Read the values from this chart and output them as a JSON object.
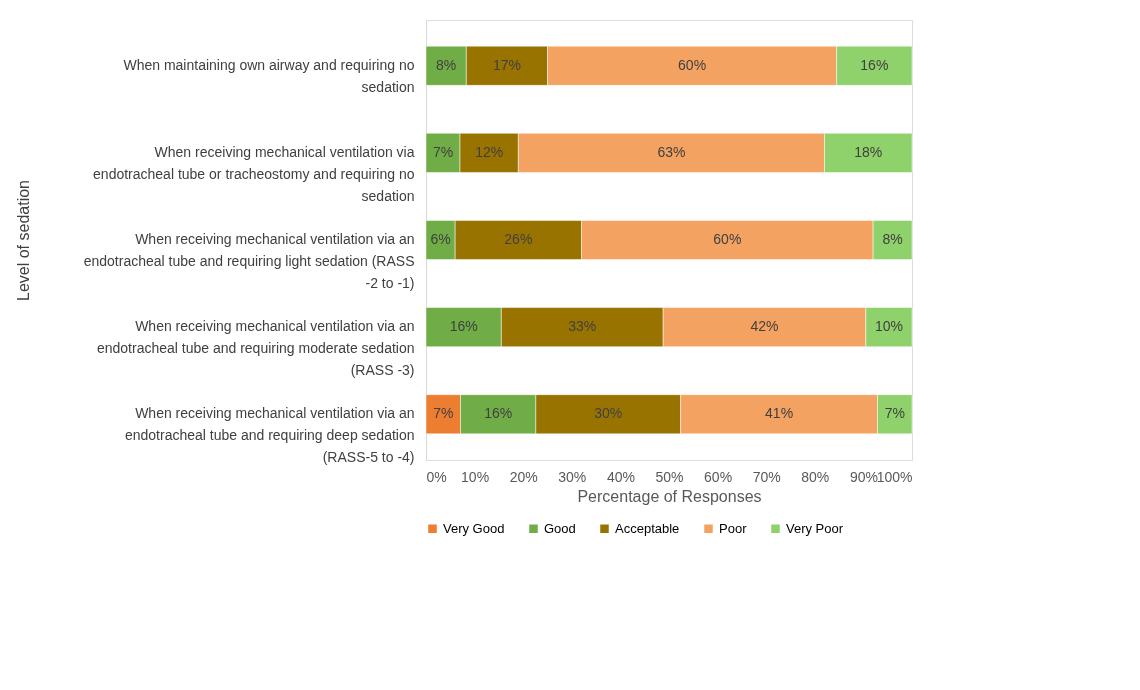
{
  "chart_data": {
    "type": "bar",
    "orientation": "horizontal",
    "stacked": true,
    "ylabel": "Level of sedation",
    "xlabel": "Percentage of Responses",
    "categories": [
      "When maintaining own airway and requiring no sedation",
      "When receiving mechanical ventilation via endotracheal tube or tracheostomy and requiring no sedation",
      "When receiving mechanical ventilation via an endotracheal tube and requiring light sedation (RASS -2 to -1)",
      "When receiving mechanical ventilation via an endotracheal tube and requiring moderate sedation (RASS -3)",
      "When receiving mechanical ventilation via an endotracheal tube and requiring deep sedation (RASS-5 to -4)"
    ],
    "series": [
      {
        "name": "Very Good",
        "color": "#ed7d31",
        "values": [
          null,
          null,
          null,
          null,
          7.1
        ],
        "value_labels": [
          null,
          null,
          null,
          null,
          "7%"
        ]
      },
      {
        "name": "Good",
        "color": "#70ad47",
        "values": [
          8.3,
          7.0,
          6.0,
          15.5,
          15.5
        ],
        "value_labels": [
          "8%",
          "7%",
          "6%",
          "16%",
          "16%"
        ]
      },
      {
        "name": "Acceptable",
        "color": "#997300",
        "values": [
          16.7,
          12.0,
          26.0,
          33.3,
          29.8
        ],
        "value_labels": [
          "17%",
          "12%",
          "26%",
          "33%",
          "30%"
        ]
      },
      {
        "name": "Poor",
        "color": "#f4a261",
        "values": [
          59.5,
          63.0,
          60.0,
          41.7,
          40.5
        ],
        "value_labels": [
          "60%",
          "63%",
          "60%",
          "42%",
          "41%"
        ]
      },
      {
        "name": "Very Poor",
        "color": "#8fd16a",
        "values": [
          15.5,
          18.0,
          8.0,
          9.5,
          7.1
        ],
        "value_labels": [
          "16%",
          "18%",
          "8%",
          "10%",
          "7%"
        ]
      }
    ],
    "xlim": [
      0,
      100
    ],
    "xticks": [
      {
        "value": 0,
        "label": "0%"
      },
      {
        "value": 10,
        "label": "10%"
      },
      {
        "value": 20,
        "label": "20%"
      },
      {
        "value": 30,
        "label": "30%"
      },
      {
        "value": 40,
        "label": "40%"
      },
      {
        "value": 50,
        "label": "50%"
      },
      {
        "value": 60,
        "label": "60%"
      },
      {
        "value": 70,
        "label": "70%"
      },
      {
        "value": 80,
        "label": "80%"
      },
      {
        "value": 90,
        "label": "90%"
      },
      {
        "value": 100,
        "label": "100%"
      }
    ],
    "grid": false,
    "legend": "bottom"
  }
}
